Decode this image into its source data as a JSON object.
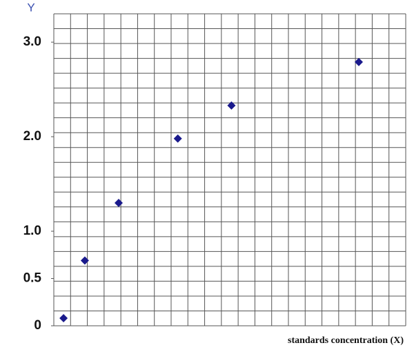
{
  "chart_data": {
    "type": "scatter",
    "y_label": "Y",
    "x_label": "standards concentration (X)",
    "color": "#1a1a8c",
    "x": [
      0.58,
      1.85,
      3.87,
      7.4,
      10.6,
      18.2
    ],
    "values": [
      0.08,
      0.69,
      1.3,
      1.98,
      2.33,
      2.79
    ],
    "xlim": [
      0,
      21
    ],
    "ylim": [
      0,
      3.3
    ],
    "yticks": [
      0,
      0.5,
      {
        "value": 1,
        "label": "1.0"
      },
      {
        "value": 2,
        "label": "2.0"
      },
      {
        "value": 3,
        "label": "3.0"
      }
    ],
    "grid": true
  }
}
